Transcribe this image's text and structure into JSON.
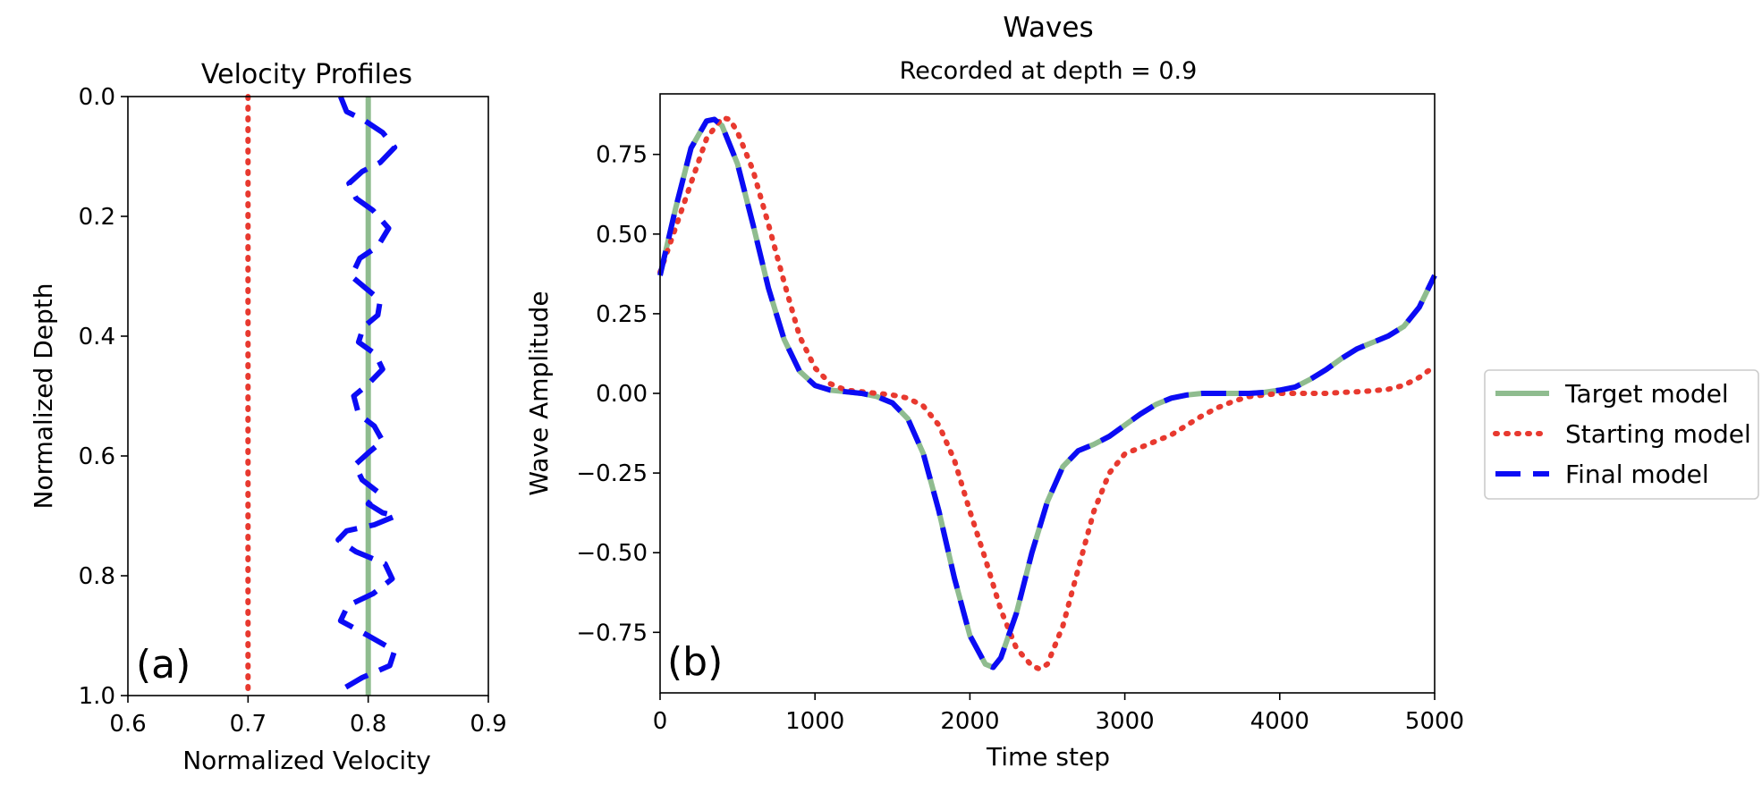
{
  "chart_data": [
    {
      "type": "line",
      "title": "Velocity Profiles",
      "xlabel": "Normalized Velocity",
      "ylabel": "Normalized Depth",
      "panel_label": "(a)",
      "xlim": [
        0.6,
        0.9
      ],
      "ylim": [
        1.0,
        0.0
      ],
      "y_inverted": true,
      "xticks": [
        0.6,
        0.7,
        0.8,
        0.9
      ],
      "xtick_labels": [
        "0.6",
        "0.7",
        "0.8",
        "0.9"
      ],
      "yticks": [
        0.0,
        0.2,
        0.4,
        0.6,
        0.8,
        1.0
      ],
      "ytick_labels": [
        "0.0",
        "0.2",
        "0.4",
        "0.6",
        "0.8",
        "1.0"
      ],
      "series": [
        {
          "name": "Target model",
          "color": "#8fbc8f",
          "style": "solid",
          "points": [
            [
              0.8,
              0.0
            ],
            [
              0.8,
              1.0
            ]
          ]
        },
        {
          "name": "Starting model",
          "color": "#e8392f",
          "style": "dotted",
          "points": [
            [
              0.7,
              0.0
            ],
            [
              0.7,
              1.0
            ]
          ]
        },
        {
          "name": "Final model",
          "color": "#0b0bf5",
          "style": "dashed",
          "points": [
            [
              0.777,
              0.0
            ],
            [
              0.782,
              0.025
            ],
            [
              0.797,
              0.04
            ],
            [
              0.812,
              0.06
            ],
            [
              0.822,
              0.085
            ],
            [
              0.81,
              0.11
            ],
            [
              0.795,
              0.125
            ],
            [
              0.784,
              0.145
            ],
            [
              0.79,
              0.17
            ],
            [
              0.804,
              0.19
            ],
            [
              0.817,
              0.22
            ],
            [
              0.808,
              0.25
            ],
            [
              0.793,
              0.27
            ],
            [
              0.786,
              0.3
            ],
            [
              0.798,
              0.32
            ],
            [
              0.81,
              0.34
            ],
            [
              0.808,
              0.365
            ],
            [
              0.796,
              0.385
            ],
            [
              0.792,
              0.41
            ],
            [
              0.806,
              0.43
            ],
            [
              0.812,
              0.455
            ],
            [
              0.8,
              0.48
            ],
            [
              0.788,
              0.5
            ],
            [
              0.792,
              0.53
            ],
            [
              0.805,
              0.55
            ],
            [
              0.812,
              0.575
            ],
            [
              0.8,
              0.595
            ],
            [
              0.789,
              0.615
            ],
            [
              0.795,
              0.64
            ],
            [
              0.808,
              0.66
            ],
            [
              0.8,
              0.68
            ],
            [
              0.812,
              0.695
            ],
            [
              0.823,
              0.7
            ],
            [
              0.805,
              0.715
            ],
            [
              0.782,
              0.725
            ],
            [
              0.775,
              0.74
            ],
            [
              0.79,
              0.76
            ],
            [
              0.814,
              0.78
            ],
            [
              0.82,
              0.805
            ],
            [
              0.804,
              0.83
            ],
            [
              0.783,
              0.85
            ],
            [
              0.777,
              0.875
            ],
            [
              0.8,
              0.9
            ],
            [
              0.822,
              0.925
            ],
            [
              0.818,
              0.95
            ],
            [
              0.795,
              0.97
            ],
            [
              0.778,
              0.99
            ],
            [
              0.776,
              1.0
            ]
          ]
        }
      ]
    },
    {
      "type": "line",
      "title": "Waves",
      "subtitle": "Recorded at depth = 0.9",
      "xlabel": "Time step",
      "ylabel": "Wave Amplitude",
      "panel_label": "(b)",
      "xlim": [
        0,
        5000
      ],
      "ylim": [
        -0.94,
        0.94
      ],
      "xticks": [
        0,
        1000,
        2000,
        3000,
        4000,
        5000
      ],
      "xtick_labels": [
        "0",
        "1000",
        "2000",
        "3000",
        "4000",
        "5000"
      ],
      "yticks": [
        0.75,
        0.5,
        0.25,
        0.0,
        -0.25,
        -0.5,
        -0.75
      ],
      "ytick_labels": [
        "0.75",
        "0.50",
        "0.25",
        "0.00",
        "−0.25",
        "−0.50",
        "−0.75"
      ],
      "legend": {
        "placement": "outside-right"
      },
      "series": [
        {
          "name": "Target model",
          "color": "#8fbc8f",
          "style": "solid",
          "points": [
            [
              0,
              0.37
            ],
            [
              100,
              0.58
            ],
            [
              200,
              0.77
            ],
            [
              300,
              0.855
            ],
            [
              350,
              0.86
            ],
            [
              400,
              0.84
            ],
            [
              500,
              0.72
            ],
            [
              600,
              0.53
            ],
            [
              700,
              0.33
            ],
            [
              800,
              0.17
            ],
            [
              900,
              0.07
            ],
            [
              1000,
              0.025
            ],
            [
              1100,
              0.01
            ],
            [
              1200,
              0.005
            ],
            [
              1300,
              0.0
            ],
            [
              1400,
              -0.01
            ],
            [
              1500,
              -0.03
            ],
            [
              1600,
              -0.08
            ],
            [
              1700,
              -0.19
            ],
            [
              1800,
              -0.37
            ],
            [
              1900,
              -0.58
            ],
            [
              2000,
              -0.76
            ],
            [
              2100,
              -0.85
            ],
            [
              2150,
              -0.86
            ],
            [
              2200,
              -0.83
            ],
            [
              2300,
              -0.69
            ],
            [
              2400,
              -0.5
            ],
            [
              2500,
              -0.34
            ],
            [
              2600,
              -0.23
            ],
            [
              2700,
              -0.18
            ],
            [
              2800,
              -0.16
            ],
            [
              2900,
              -0.135
            ],
            [
              3000,
              -0.1
            ],
            [
              3100,
              -0.065
            ],
            [
              3200,
              -0.035
            ],
            [
              3300,
              -0.015
            ],
            [
              3400,
              -0.005
            ],
            [
              3500,
              0.0
            ],
            [
              3600,
              0.0
            ],
            [
              3700,
              0.0
            ],
            [
              3800,
              0.0
            ],
            [
              3900,
              0.003
            ],
            [
              4000,
              0.01
            ],
            [
              4100,
              0.02
            ],
            [
              4200,
              0.045
            ],
            [
              4300,
              0.075
            ],
            [
              4400,
              0.11
            ],
            [
              4500,
              0.14
            ],
            [
              4600,
              0.16
            ],
            [
              4700,
              0.18
            ],
            [
              4800,
              0.21
            ],
            [
              4900,
              0.27
            ],
            [
              5000,
              0.37
            ]
          ]
        },
        {
          "name": "Starting model",
          "color": "#e8392f",
          "style": "dotted",
          "points": [
            [
              0,
              0.38
            ],
            [
              100,
              0.52
            ],
            [
              200,
              0.66
            ],
            [
              300,
              0.8
            ],
            [
              400,
              0.865
            ],
            [
              450,
              0.86
            ],
            [
              500,
              0.82
            ],
            [
              600,
              0.7
            ],
            [
              700,
              0.53
            ],
            [
              800,
              0.35
            ],
            [
              900,
              0.18
            ],
            [
              1000,
              0.08
            ],
            [
              1100,
              0.03
            ],
            [
              1200,
              0.01
            ],
            [
              1300,
              0.005
            ],
            [
              1400,
              0.0
            ],
            [
              1500,
              -0.005
            ],
            [
              1600,
              -0.015
            ],
            [
              1700,
              -0.04
            ],
            [
              1800,
              -0.1
            ],
            [
              1900,
              -0.21
            ],
            [
              2000,
              -0.37
            ],
            [
              2100,
              -0.52
            ],
            [
              2200,
              -0.68
            ],
            [
              2300,
              -0.8
            ],
            [
              2400,
              -0.855
            ],
            [
              2450,
              -0.865
            ],
            [
              2500,
              -0.85
            ],
            [
              2600,
              -0.73
            ],
            [
              2700,
              -0.55
            ],
            [
              2800,
              -0.37
            ],
            [
              2900,
              -0.25
            ],
            [
              3000,
              -0.19
            ],
            [
              3100,
              -0.17
            ],
            [
              3200,
              -0.15
            ],
            [
              3300,
              -0.13
            ],
            [
              3400,
              -0.1
            ],
            [
              3500,
              -0.07
            ],
            [
              3600,
              -0.045
            ],
            [
              3700,
              -0.025
            ],
            [
              3800,
              -0.01
            ],
            [
              3900,
              -0.005
            ],
            [
              4000,
              0.0
            ],
            [
              4100,
              0.0
            ],
            [
              4200,
              0.0
            ],
            [
              4300,
              0.0
            ],
            [
              4400,
              0.003
            ],
            [
              4500,
              0.005
            ],
            [
              4600,
              0.008
            ],
            [
              4700,
              0.013
            ],
            [
              4800,
              0.025
            ],
            [
              4900,
              0.05
            ],
            [
              5000,
              0.085
            ]
          ]
        },
        {
          "name": "Final model",
          "color": "#0b0bf5",
          "style": "dashed",
          "points": [
            [
              0,
              0.37
            ],
            [
              100,
              0.58
            ],
            [
              200,
              0.77
            ],
            [
              300,
              0.855
            ],
            [
              350,
              0.86
            ],
            [
              400,
              0.84
            ],
            [
              500,
              0.72
            ],
            [
              600,
              0.53
            ],
            [
              700,
              0.33
            ],
            [
              800,
              0.17
            ],
            [
              900,
              0.07
            ],
            [
              1000,
              0.025
            ],
            [
              1100,
              0.01
            ],
            [
              1200,
              0.005
            ],
            [
              1300,
              0.0
            ],
            [
              1400,
              -0.01
            ],
            [
              1500,
              -0.03
            ],
            [
              1600,
              -0.08
            ],
            [
              1700,
              -0.19
            ],
            [
              1800,
              -0.37
            ],
            [
              1900,
              -0.58
            ],
            [
              2000,
              -0.76
            ],
            [
              2100,
              -0.85
            ],
            [
              2150,
              -0.86
            ],
            [
              2200,
              -0.83
            ],
            [
              2300,
              -0.69
            ],
            [
              2400,
              -0.5
            ],
            [
              2500,
              -0.34
            ],
            [
              2600,
              -0.23
            ],
            [
              2700,
              -0.18
            ],
            [
              2800,
              -0.16
            ],
            [
              2900,
              -0.135
            ],
            [
              3000,
              -0.1
            ],
            [
              3100,
              -0.065
            ],
            [
              3200,
              -0.035
            ],
            [
              3300,
              -0.015
            ],
            [
              3400,
              -0.005
            ],
            [
              3500,
              0.0
            ],
            [
              3600,
              0.0
            ],
            [
              3700,
              0.0
            ],
            [
              3800,
              0.0
            ],
            [
              3900,
              0.003
            ],
            [
              4000,
              0.01
            ],
            [
              4100,
              0.02
            ],
            [
              4200,
              0.045
            ],
            [
              4300,
              0.075
            ],
            [
              4400,
              0.11
            ],
            [
              4500,
              0.14
            ],
            [
              4600,
              0.16
            ],
            [
              4700,
              0.18
            ],
            [
              4800,
              0.21
            ],
            [
              4900,
              0.27
            ],
            [
              5000,
              0.37
            ]
          ]
        }
      ]
    }
  ]
}
